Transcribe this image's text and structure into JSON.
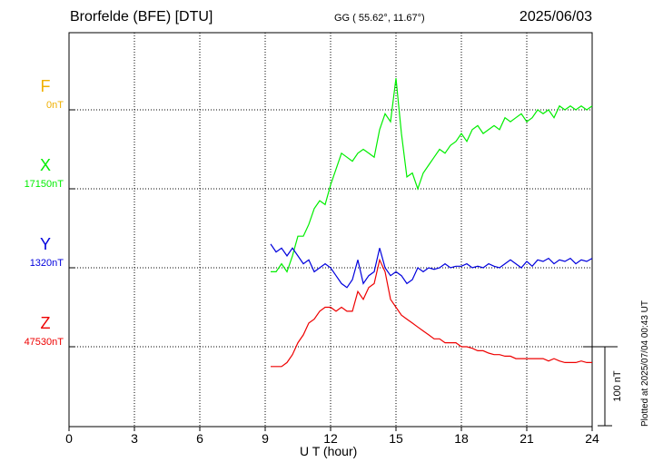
{
  "header": {
    "station": "Brorfelde (BFE)  [DTU]",
    "coords": "GG ( 55.62°,  11.67°)",
    "date": "2025/06/03"
  },
  "footer": "Plotted at 2025/07/04 00:43 UT",
  "chart_data": {
    "type": "line",
    "title": "",
    "xlabel": "U T (hour)",
    "ylabel": "",
    "xlim": [
      0,
      24
    ],
    "x_ticks": [
      0,
      3,
      6,
      9,
      12,
      15,
      18,
      21,
      24
    ],
    "grid": true,
    "scale_bar": {
      "label": "100 nT",
      "value_nT": 100
    },
    "series": [
      {
        "name": "F",
        "baseline_label": "0nT",
        "color": "#f0b000",
        "x": [],
        "y": []
      },
      {
        "name": "X",
        "baseline_label": "17150nT",
        "color": "#00ee00",
        "x": [
          9.25,
          9.5,
          9.75,
          10.0,
          10.25,
          10.5,
          10.75,
          11.0,
          11.25,
          11.5,
          11.75,
          12.0,
          12.25,
          12.5,
          12.75,
          13.0,
          13.25,
          13.5,
          13.75,
          14.0,
          14.25,
          14.5,
          14.75,
          15.0,
          15.25,
          15.5,
          15.75,
          16.0,
          16.25,
          16.5,
          16.75,
          17.0,
          17.25,
          17.5,
          17.75,
          18.0,
          18.25,
          18.5,
          18.75,
          19.0,
          19.25,
          19.5,
          19.75,
          20.0,
          20.25,
          20.5,
          20.75,
          21.0,
          21.25,
          21.5,
          21.75,
          22.0,
          22.25,
          22.5,
          22.75,
          23.0,
          23.25,
          23.5,
          23.75,
          24.0
        ],
        "y": [
          -105,
          -105,
          -95,
          -105,
          -85,
          -60,
          -60,
          -45,
          -25,
          -15,
          -20,
          5,
          25,
          45,
          40,
          35,
          45,
          50,
          45,
          40,
          75,
          95,
          85,
          140,
          70,
          15,
          20,
          0,
          20,
          30,
          40,
          50,
          45,
          55,
          60,
          70,
          60,
          75,
          80,
          70,
          75,
          80,
          75,
          90,
          85,
          90,
          95,
          85,
          90,
          100,
          95,
          100,
          90,
          105,
          100,
          105,
          100,
          105,
          100,
          105
        ]
      },
      {
        "name": "Y",
        "baseline_label": "1320nT",
        "color": "#0000dd",
        "x": [
          9.25,
          9.5,
          9.75,
          10.0,
          10.25,
          10.5,
          10.75,
          11.0,
          11.25,
          11.5,
          11.75,
          12.0,
          12.25,
          12.5,
          12.75,
          13.0,
          13.25,
          13.5,
          13.75,
          14.0,
          14.25,
          14.5,
          14.75,
          15.0,
          15.25,
          15.5,
          15.75,
          16.0,
          16.25,
          16.5,
          16.75,
          17.0,
          17.25,
          17.5,
          17.75,
          18.0,
          18.25,
          18.5,
          18.75,
          19.0,
          19.25,
          19.5,
          19.75,
          20.0,
          20.25,
          20.5,
          20.75,
          21.0,
          21.25,
          21.5,
          21.75,
          22.0,
          22.25,
          22.5,
          22.75,
          23.0,
          23.25,
          23.5,
          23.75,
          24.0
        ],
        "y": [
          30,
          20,
          25,
          15,
          25,
          15,
          5,
          10,
          -5,
          0,
          5,
          0,
          -10,
          -20,
          -25,
          -15,
          10,
          -20,
          -10,
          -5,
          25,
          0,
          -10,
          -5,
          -10,
          -20,
          -15,
          0,
          -5,
          0,
          -2,
          0,
          5,
          0,
          2,
          2,
          5,
          0,
          2,
          0,
          5,
          2,
          0,
          5,
          10,
          5,
          0,
          8,
          2,
          10,
          8,
          12,
          5,
          10,
          8,
          12,
          5,
          10,
          8,
          12
        ]
      },
      {
        "name": "Z",
        "baseline_label": "47530nT",
        "color": "#ee0000",
        "x": [
          9.25,
          9.5,
          9.75,
          10.0,
          10.25,
          10.5,
          10.75,
          11.0,
          11.25,
          11.5,
          11.75,
          12.0,
          12.25,
          12.5,
          12.75,
          13.0,
          13.25,
          13.5,
          13.75,
          14.0,
          14.25,
          14.5,
          14.75,
          15.0,
          15.25,
          15.5,
          15.75,
          16.0,
          16.25,
          16.5,
          16.75,
          17.0,
          17.25,
          17.5,
          17.75,
          18.0,
          18.25,
          18.5,
          18.75,
          19.0,
          19.25,
          19.5,
          19.75,
          20.0,
          20.25,
          20.5,
          20.75,
          21.0,
          21.25,
          21.5,
          21.75,
          22.0,
          22.25,
          22.5,
          22.75,
          23.0,
          23.25,
          23.5,
          23.75,
          24.0
        ],
        "y": [
          -25,
          -25,
          -25,
          -20,
          -10,
          5,
          15,
          30,
          35,
          45,
          50,
          50,
          45,
          50,
          45,
          45,
          70,
          60,
          75,
          80,
          110,
          95,
          60,
          50,
          40,
          35,
          30,
          25,
          20,
          15,
          10,
          10,
          5,
          5,
          5,
          0,
          0,
          -2,
          -5,
          -5,
          -8,
          -10,
          -10,
          -12,
          -12,
          -15,
          -15,
          -15,
          -15,
          -15,
          -15,
          -18,
          -15,
          -18,
          -20,
          -20,
          -20,
          -18,
          -20,
          -20
        ]
      }
    ]
  }
}
